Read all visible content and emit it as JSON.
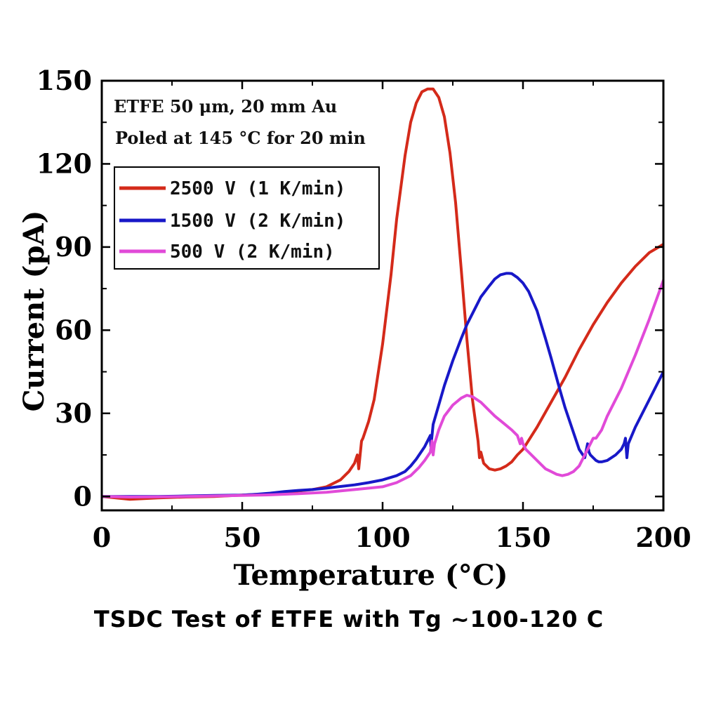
{
  "chart_data": {
    "type": "line",
    "title": "",
    "xlabel": "Temperature (°C)",
    "ylabel": "Current (pA)",
    "xlim": [
      0,
      200
    ],
    "ylim": [
      -5,
      150
    ],
    "xticks": [
      0,
      50,
      100,
      150,
      200
    ],
    "yticks": [
      0,
      30,
      60,
      90,
      120,
      150
    ],
    "xtick_labels": [
      "0",
      "50",
      "100",
      "150",
      "200"
    ],
    "ytick_labels": [
      "0",
      "30",
      "60",
      "90",
      "120",
      "150"
    ],
    "grid": false,
    "legend_position": "upper-left",
    "annotations": [
      "ETFE 50 μm, 20 mm Au",
      "Poled at 145 °C for 20 min"
    ],
    "caption": "TSDC Test of ETFE with Tg ~100-120 C",
    "series": [
      {
        "name": "2500 V (1 K/min)",
        "color": "#d42a1a",
        "x": [
          0,
          10,
          20,
          30,
          40,
          50,
          60,
          65,
          70,
          75,
          80,
          85,
          88,
          90,
          91,
          91.5,
          92,
          92.5,
          93,
          95,
          97,
          100,
          103,
          105,
          108,
          110,
          112,
          114,
          116,
          118,
          120,
          122,
          124,
          126,
          128,
          130,
          132,
          134,
          134.5,
          135,
          136,
          138,
          140,
          142,
          144,
          146,
          148,
          150,
          155,
          160,
          165,
          170,
          175,
          180,
          185,
          190,
          195,
          200
        ],
        "y": [
          0,
          -1,
          -0.5,
          -0.2,
          0,
          0.5,
          1,
          1.5,
          2,
          2.5,
          3.5,
          6,
          9,
          12,
          15,
          10,
          15,
          20,
          21,
          27,
          35,
          55,
          80,
          100,
          123,
          135,
          142,
          146,
          147,
          147,
          144,
          137,
          124,
          106,
          82,
          57,
          35,
          20,
          14,
          16,
          12,
          10,
          9.5,
          10,
          11,
          12.5,
          15,
          17,
          25,
          34,
          43,
          53,
          62,
          70,
          77,
          83,
          88,
          91
        ]
      },
      {
        "name": "1500 V (2 K/min)",
        "color": "#1818c8",
        "x": [
          0,
          10,
          20,
          30,
          40,
          50,
          55,
          60,
          65,
          70,
          75,
          80,
          85,
          90,
          95,
          100,
          105,
          108,
          110,
          112,
          115,
          117,
          117.2,
          117.6,
          118,
          120,
          122,
          125,
          128,
          130,
          133,
          135,
          138,
          140,
          142,
          144,
          145,
          146,
          148,
          150,
          152,
          155,
          158,
          160,
          163,
          165,
          168,
          170,
          172,
          173,
          173.5,
          174,
          175,
          176,
          177,
          178,
          180,
          183,
          185,
          186,
          186.5,
          187,
          187.5,
          190,
          195,
          200
        ],
        "y": [
          0,
          0,
          0,
          0.2,
          0.4,
          0.5,
          0.8,
          1.2,
          1.8,
          2.2,
          2.5,
          3,
          3.6,
          4.2,
          5,
          6,
          7.5,
          9,
          11,
          13.5,
          18,
          22,
          18,
          22,
          26,
          33,
          40,
          49,
          57,
          62,
          68,
          72,
          76,
          78.5,
          80,
          80.5,
          80.5,
          80.4,
          79,
          77,
          74,
          67,
          57,
          50,
          39,
          32,
          23,
          17,
          14,
          19,
          16,
          15,
          14,
          13,
          12.5,
          12.5,
          13,
          15,
          17,
          19,
          21,
          14,
          19,
          25,
          35,
          45
        ]
      },
      {
        "name": "500 V (2 K/min)",
        "color": "#e14ad8",
        "x": [
          0,
          10,
          20,
          30,
          40,
          50,
          60,
          70,
          80,
          90,
          100,
          105,
          110,
          113,
          115,
          117,
          117.6,
          118,
          118.5,
          120,
          122,
          125,
          128,
          130,
          132,
          135,
          138,
          140,
          143,
          146,
          148,
          149,
          149.5,
          150,
          151,
          155,
          158,
          160,
          162,
          164,
          166,
          168,
          170,
          172,
          174,
          175,
          176,
          178,
          180,
          185,
          190,
          195,
          200
        ],
        "y": [
          0,
          -0.2,
          -0.1,
          0,
          0.2,
          0.4,
          0.6,
          1,
          1.5,
          2.5,
          3.5,
          5,
          7.5,
          10.5,
          13,
          16,
          20,
          15,
          19,
          24,
          29,
          33,
          35.5,
          36.5,
          36,
          34,
          31,
          29,
          26.5,
          24,
          22,
          19,
          21,
          19,
          17,
          13,
          10,
          9,
          8,
          7.5,
          8,
          9,
          11,
          15,
          19,
          21,
          21,
          24,
          29,
          39,
          51,
          64,
          78
        ]
      }
    ]
  }
}
